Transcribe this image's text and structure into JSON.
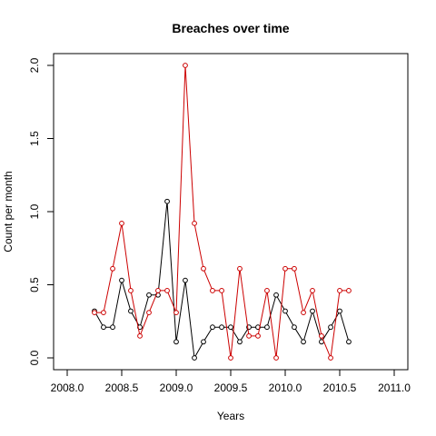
{
  "chart_data": {
    "type": "line",
    "title": "Breaches over time",
    "xlabel": "Years",
    "ylabel": "Count per month",
    "xlim": [
      2008.0,
      2011.0
    ],
    "ylim": [
      0.0,
      2.0
    ],
    "xticks": [
      "2008.0",
      "2008.5",
      "2009.0",
      "2009.5",
      "2010.0",
      "2010.5",
      "2011.0"
    ],
    "yticks": [
      "0.0",
      "0.5",
      "1.0",
      "1.5",
      "2.0"
    ],
    "grid": false,
    "legend": "none",
    "series": [
      {
        "color": "#000000",
        "x": [
          2008.25,
          2008.333,
          2008.417,
          2008.5,
          2008.583,
          2008.667,
          2008.75,
          2008.833,
          2008.917,
          2009.0,
          2009.083,
          2009.167,
          2009.25,
          2009.333,
          2009.417,
          2009.5,
          2009.583,
          2009.667,
          2009.75,
          2009.833,
          2009.917,
          2010.0,
          2010.083,
          2010.167,
          2010.25,
          2010.333,
          2010.417,
          2010.5,
          2010.583
        ],
        "y": [
          0.32,
          0.21,
          0.21,
          0.53,
          0.32,
          0.21,
          0.43,
          0.43,
          1.07,
          0.11,
          0.53,
          0.0,
          0.11,
          0.21,
          0.21,
          0.21,
          0.11,
          0.21,
          0.21,
          0.21,
          0.43,
          0.32,
          0.21,
          0.11,
          0.32,
          0.11,
          0.21,
          0.32,
          0.11
        ]
      },
      {
        "color": "#cc0000",
        "x": [
          2008.25,
          2008.333,
          2008.417,
          2008.5,
          2008.583,
          2008.667,
          2008.75,
          2008.833,
          2008.917,
          2009.0,
          2009.083,
          2009.167,
          2009.25,
          2009.333,
          2009.417,
          2009.5,
          2009.583,
          2009.667,
          2009.75,
          2009.833,
          2009.917,
          2010.0,
          2010.083,
          2010.167,
          2010.25,
          2010.333,
          2010.417,
          2010.5,
          2010.583
        ],
        "y": [
          0.31,
          0.31,
          0.61,
          0.92,
          0.46,
          0.15,
          0.31,
          0.46,
          0.46,
          0.31,
          2.0,
          0.92,
          0.61,
          0.46,
          0.46,
          0.0,
          0.61,
          0.15,
          0.15,
          0.46,
          0.0,
          0.61,
          0.61,
          0.31,
          0.46,
          0.15,
          0.0,
          0.46,
          0.46
        ]
      }
    ]
  }
}
